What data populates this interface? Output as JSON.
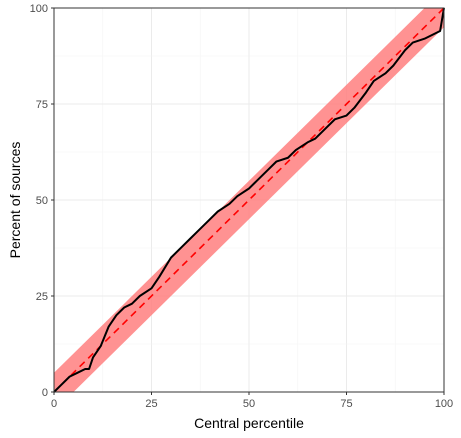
{
  "chart_data": {
    "type": "line",
    "xlabel": "Central percentile",
    "ylabel": "Percent of sources",
    "xlim": [
      0,
      100
    ],
    "ylim": [
      0,
      100
    ],
    "x_ticks": [
      0,
      25,
      50,
      75,
      100
    ],
    "y_ticks": [
      0,
      25,
      50,
      75,
      100
    ],
    "grid": true,
    "legend": "none",
    "band": {
      "half_width": 5,
      "color": "#ff7f7f"
    },
    "reference_line": {
      "x": [
        0,
        100
      ],
      "y": [
        0,
        100
      ],
      "color": "#ff0000",
      "dash": "dashed"
    },
    "series": [
      {
        "color": "#000000",
        "x": [
          0,
          2,
          4,
          6,
          8,
          9,
          10,
          12,
          14,
          16,
          18,
          20,
          22,
          25,
          27,
          30,
          33,
          35,
          37,
          40,
          42,
          45,
          47,
          50,
          52,
          55,
          57,
          60,
          62,
          65,
          67,
          70,
          72,
          75,
          77,
          80,
          82,
          85,
          87,
          90,
          92,
          95,
          97,
          99,
          100
        ],
        "y": [
          0,
          2,
          4,
          5,
          6,
          6,
          9,
          12,
          17,
          20,
          22,
          23,
          25,
          27,
          30,
          35,
          38,
          40,
          42,
          45,
          47,
          49,
          51,
          53,
          55,
          58,
          60,
          61,
          63,
          65,
          66,
          69,
          71,
          72,
          74,
          78,
          81,
          83,
          85,
          89,
          91,
          92,
          93,
          94,
          100
        ]
      }
    ]
  }
}
